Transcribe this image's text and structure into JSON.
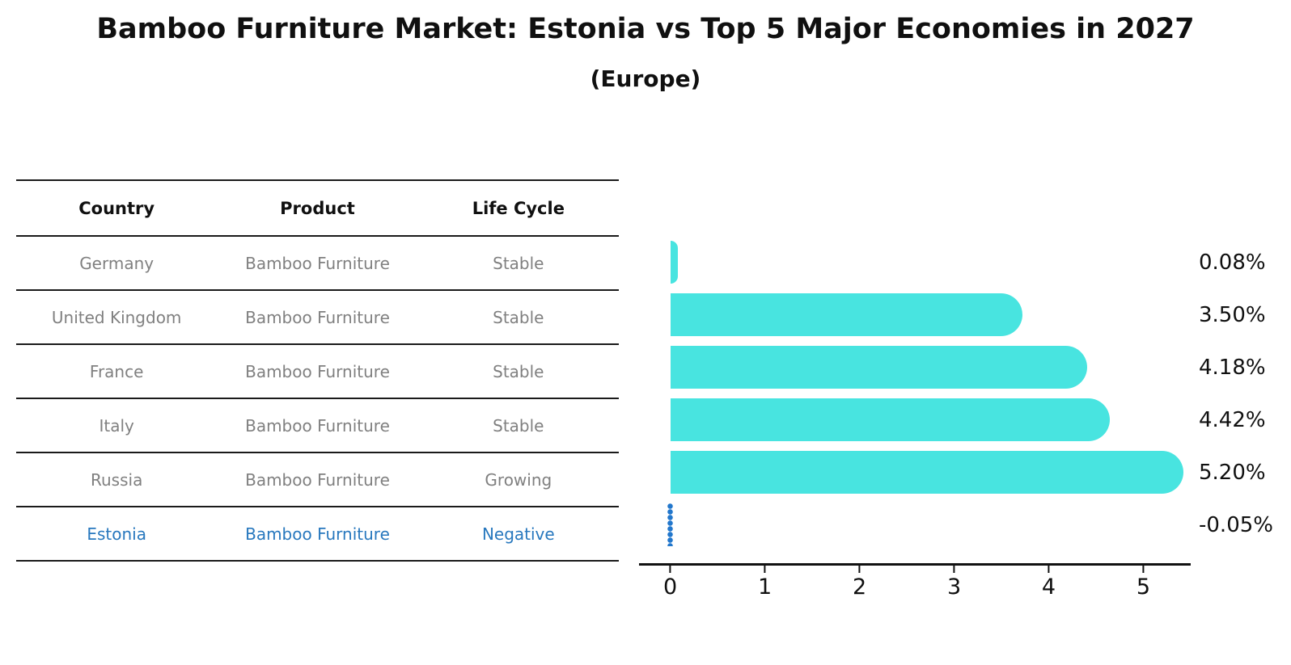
{
  "title": "Bamboo Furniture Market: Estonia vs Top 5 Major Economies in 2027",
  "subtitle": "(Europe)",
  "table": {
    "headers": [
      "Country",
      "Product",
      "Life Cycle"
    ],
    "rows": [
      {
        "country": "Germany",
        "product": "Bamboo Furniture",
        "life_cycle": "Stable",
        "highlighted": false
      },
      {
        "country": "United Kingdom",
        "product": "Bamboo Furniture",
        "life_cycle": "Stable",
        "highlighted": false
      },
      {
        "country": "France",
        "product": "Bamboo Furniture",
        "life_cycle": "Stable",
        "highlighted": false
      },
      {
        "country": "Italy",
        "product": "Bamboo Furniture",
        "life_cycle": "Stable",
        "highlighted": false
      },
      {
        "country": "Russia",
        "product": "Bamboo Furniture",
        "life_cycle": "Growing",
        "highlighted": false
      },
      {
        "country": "Estonia",
        "product": "Bamboo Furniture",
        "life_cycle": "Negative",
        "highlighted": true
      }
    ]
  },
  "chart_data": {
    "type": "bar",
    "orientation": "horizontal",
    "title": "Bamboo Furniture Market: Estonia vs Top 5 Major Economies in 2027 (Europe)",
    "categories": [
      "Germany",
      "United Kingdom",
      "France",
      "Italy",
      "Russia",
      "Estonia"
    ],
    "values": [
      0.08,
      3.5,
      4.18,
      4.42,
      5.2,
      -0.05
    ],
    "value_labels": [
      "0.08%",
      "3.50%",
      "4.18%",
      "4.42%",
      "5.20%",
      "-0.05%"
    ],
    "ticks": [
      0,
      1,
      2,
      3,
      4,
      5
    ],
    "xlim": [
      -0.33,
      5.5
    ],
    "xlabel": "",
    "ylabel": "",
    "grid": false,
    "legend": false,
    "bar_style": "rounded-right-cap",
    "negative_marker_style": "dotted-line-at-zero"
  },
  "colors": {
    "bar": "#48E4E0",
    "highlight": "#2878BE",
    "marker": "#2277CC",
    "axis": "#111111",
    "muted": "#808080"
  }
}
